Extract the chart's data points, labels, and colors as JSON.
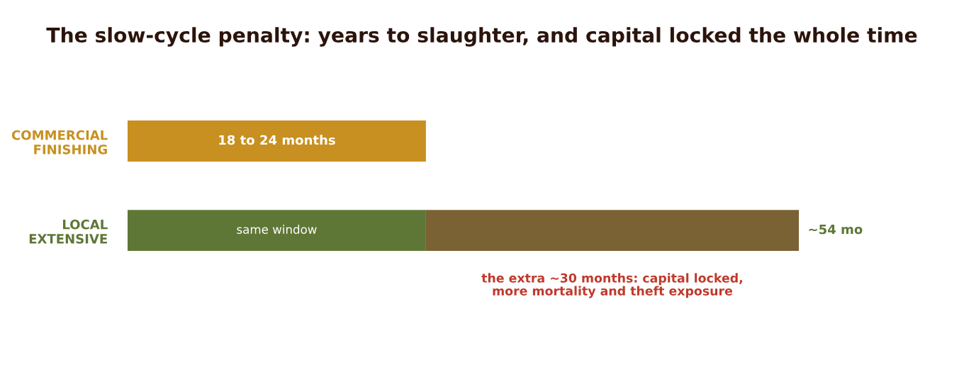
{
  "chart_data": {
    "type": "bar",
    "orientation": "horizontal",
    "stacked": true,
    "title": "The slow-cycle penalty: years to slaughter, and capital locked the whole time",
    "categories": [
      "COMMERCIAL\nFINISHING",
      "LOCAL\nEXTENSIVE"
    ],
    "series": [
      {
        "colors": [
          "#c89020",
          "#5e7736"
        ],
        "values": [
          24,
          24
        ],
        "value_labels": [
          "18 to 24 months",
          "same window"
        ]
      },
      {
        "color": "#7a6234",
        "values": [
          null,
          30
        ]
      }
    ],
    "totals": [
      null,
      "~54 mo"
    ],
    "xlim": [
      0,
      54
    ],
    "tick_labels": "y",
    "annotations": [
      "the extra ~30 months: capital locked,\nmore mortality and theft exposure"
    ],
    "grid": false,
    "legend": false
  }
}
